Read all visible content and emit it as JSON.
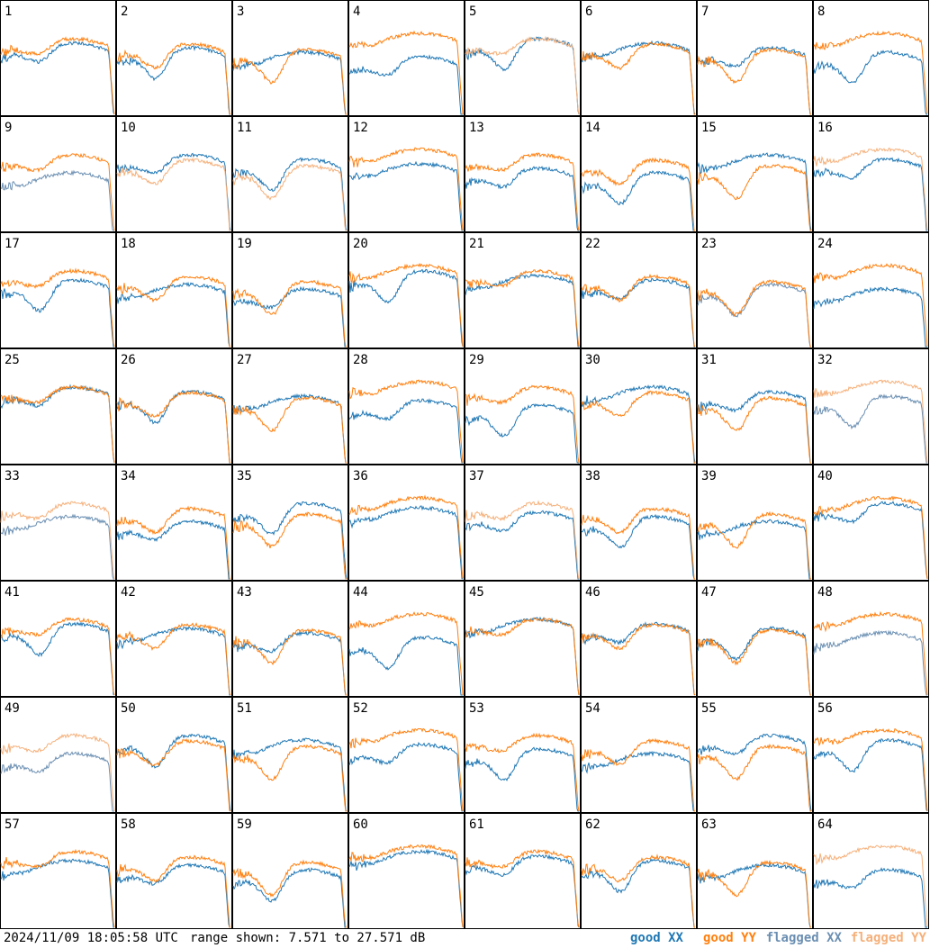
{
  "colors": {
    "good_xx": "#1f77b4",
    "good_yy": "#ff7f0e",
    "flagged_xx": "#6b8fb2",
    "flagged_yy": "#f5b07a"
  },
  "footer": {
    "timestamp": "2024/11/09 18:05:58 UTC",
    "range": "range shown: 7.571 to 27.571 dB",
    "legend": {
      "good_xx": "good XX",
      "good_yy": "good YY",
      "flagged_xx": "flagged XX",
      "flagged_yy": "flagged YY"
    }
  },
  "chart_data": {
    "type": "line",
    "title": "",
    "xlabel": "",
    "ylabel": "",
    "ylim": [
      7.571,
      27.571
    ],
    "grid": false,
    "panels": [
      {
        "id": "1",
        "xx": "good",
        "yy": "good"
      },
      {
        "id": "2",
        "xx": "good",
        "yy": "good"
      },
      {
        "id": "3",
        "xx": "good",
        "yy": "good"
      },
      {
        "id": "4",
        "xx": "good",
        "yy": "good"
      },
      {
        "id": "5",
        "xx": "good",
        "yy": "flagged"
      },
      {
        "id": "6",
        "xx": "good",
        "yy": "good"
      },
      {
        "id": "7",
        "xx": "good",
        "yy": "good"
      },
      {
        "id": "8",
        "xx": "good",
        "yy": "good"
      },
      {
        "id": "9",
        "xx": "flagged",
        "yy": "good"
      },
      {
        "id": "10",
        "xx": "good",
        "yy": "flagged"
      },
      {
        "id": "11",
        "xx": "good",
        "yy": "flagged"
      },
      {
        "id": "12",
        "xx": "good",
        "yy": "good"
      },
      {
        "id": "13",
        "xx": "good",
        "yy": "good"
      },
      {
        "id": "14",
        "xx": "good",
        "yy": "good"
      },
      {
        "id": "15",
        "xx": "good",
        "yy": "good"
      },
      {
        "id": "16",
        "xx": "good",
        "yy": "flagged"
      },
      {
        "id": "17",
        "xx": "good",
        "yy": "good"
      },
      {
        "id": "18",
        "xx": "good",
        "yy": "good"
      },
      {
        "id": "19",
        "xx": "good",
        "yy": "good"
      },
      {
        "id": "20",
        "xx": "good",
        "yy": "good"
      },
      {
        "id": "21",
        "xx": "good",
        "yy": "good"
      },
      {
        "id": "22",
        "xx": "good",
        "yy": "good"
      },
      {
        "id": "23",
        "xx": "flagged",
        "yy": "good"
      },
      {
        "id": "24",
        "xx": "good",
        "yy": "good"
      },
      {
        "id": "25",
        "xx": "good",
        "yy": "good"
      },
      {
        "id": "26",
        "xx": "good",
        "yy": "good"
      },
      {
        "id": "27",
        "xx": "good",
        "yy": "good"
      },
      {
        "id": "28",
        "xx": "good",
        "yy": "good"
      },
      {
        "id": "29",
        "xx": "good",
        "yy": "good"
      },
      {
        "id": "30",
        "xx": "good",
        "yy": "good"
      },
      {
        "id": "31",
        "xx": "good",
        "yy": "good"
      },
      {
        "id": "32",
        "xx": "flagged",
        "yy": "flagged"
      },
      {
        "id": "33",
        "xx": "flagged",
        "yy": "flagged"
      },
      {
        "id": "34",
        "xx": "good",
        "yy": "good"
      },
      {
        "id": "35",
        "xx": "good",
        "yy": "good"
      },
      {
        "id": "36",
        "xx": "good",
        "yy": "good"
      },
      {
        "id": "37",
        "xx": "good",
        "yy": "flagged"
      },
      {
        "id": "38",
        "xx": "good",
        "yy": "good"
      },
      {
        "id": "39",
        "xx": "good",
        "yy": "good"
      },
      {
        "id": "40",
        "xx": "good",
        "yy": "good"
      },
      {
        "id": "41",
        "xx": "good",
        "yy": "good"
      },
      {
        "id": "42",
        "xx": "good",
        "yy": "good"
      },
      {
        "id": "43",
        "xx": "good",
        "yy": "good"
      },
      {
        "id": "44",
        "xx": "good",
        "yy": "good"
      },
      {
        "id": "45",
        "xx": "good",
        "yy": "good"
      },
      {
        "id": "46",
        "xx": "good",
        "yy": "good"
      },
      {
        "id": "47",
        "xx": "good",
        "yy": "good"
      },
      {
        "id": "48",
        "xx": "flagged",
        "yy": "good"
      },
      {
        "id": "49",
        "xx": "flagged",
        "yy": "flagged"
      },
      {
        "id": "50",
        "xx": "good",
        "yy": "good"
      },
      {
        "id": "51",
        "xx": "good",
        "yy": "good"
      },
      {
        "id": "52",
        "xx": "good",
        "yy": "good"
      },
      {
        "id": "53",
        "xx": "good",
        "yy": "good"
      },
      {
        "id": "54",
        "xx": "good",
        "yy": "good"
      },
      {
        "id": "55",
        "xx": "good",
        "yy": "good"
      },
      {
        "id": "56",
        "xx": "good",
        "yy": "good"
      },
      {
        "id": "57",
        "xx": "good",
        "yy": "good"
      },
      {
        "id": "58",
        "xx": "good",
        "yy": "good"
      },
      {
        "id": "59",
        "xx": "good",
        "yy": "good"
      },
      {
        "id": "60",
        "xx": "good",
        "yy": "good"
      },
      {
        "id": "61",
        "xx": "good",
        "yy": "good"
      },
      {
        "id": "62",
        "xx": "good",
        "yy": "good"
      },
      {
        "id": "63",
        "xx": "good",
        "yy": "good"
      },
      {
        "id": "64",
        "xx": "good",
        "yy": "flagged"
      }
    ]
  }
}
